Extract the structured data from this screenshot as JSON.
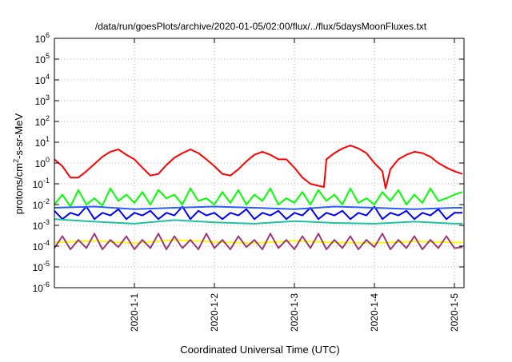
{
  "chart_data": {
    "type": "line",
    "title": "/data/run/goesPlots/archive/2020-01-05/02:00/flux/../flux/5daysMoonFluxes.txt",
    "xlabel": "Coordinated Universal Time (UTC)",
    "ylabel_parts": {
      "pre": "protons/cm",
      "sup": "2",
      "post": "-s-sr-MeV"
    },
    "yscale": "log",
    "ylim_exp": [
      -6,
      6
    ],
    "y_ticks": [
      {
        "exp": -6
      },
      {
        "exp": -5
      },
      {
        "exp": -4
      },
      {
        "exp": -3
      },
      {
        "exp": -2
      },
      {
        "exp": -1
      },
      {
        "exp": 0
      },
      {
        "exp": 1
      },
      {
        "exp": 2
      },
      {
        "exp": 3
      },
      {
        "exp": 4
      },
      {
        "exp": 5
      },
      {
        "exp": 6
      }
    ],
    "y_tick_base": "10",
    "xlim": [
      0,
      5.12
    ],
    "x_ticks": [
      {
        "label": "2020-1-1",
        "value": 1.0
      },
      {
        "label": "2020-1-2",
        "value": 2.0
      },
      {
        "label": "2020-1-3",
        "value": 3.0
      },
      {
        "label": "2020-1-4",
        "value": 4.0
      },
      {
        "label": "2020-1-5",
        "value": 5.0
      }
    ],
    "grid": true,
    "series_note": "x values are days measured from 2019-12-31 00:00 UTC",
    "series": [
      {
        "color": "#ff0000",
        "x": [
          0,
          0.1,
          0.2,
          0.3,
          0.4,
          0.5,
          0.6,
          0.7,
          0.8,
          0.9,
          1.0,
          1.1,
          1.2,
          1.3,
          1.4,
          1.5,
          1.6,
          1.7,
          1.8,
          1.9,
          2.0,
          2.1,
          2.2,
          2.3,
          2.4,
          2.5,
          2.6,
          2.7,
          2.8,
          2.9,
          3.0,
          3.1,
          3.2,
          3.3,
          3.37,
          3.4,
          3.5,
          3.6,
          3.7,
          3.8,
          3.9,
          4.0,
          4.1,
          4.14,
          4.2,
          4.3,
          4.4,
          4.5,
          4.6,
          4.7,
          4.8,
          4.9,
          5.0,
          5.1
        ],
        "y": [
          1.5,
          0.7,
          0.2,
          0.2,
          0.4,
          0.9,
          2.0,
          3.5,
          4.5,
          2.5,
          1.5,
          0.6,
          0.25,
          0.3,
          0.8,
          1.8,
          3.0,
          4.5,
          3.0,
          1.5,
          0.7,
          0.3,
          0.25,
          0.5,
          1.2,
          2.5,
          3.5,
          2.5,
          1.5,
          1.5,
          0.6,
          0.2,
          0.1,
          0.08,
          0.07,
          1.5,
          3.0,
          5.0,
          7.0,
          5.0,
          3.0,
          1.0,
          0.4,
          0.06,
          0.5,
          1.5,
          2.5,
          3.5,
          3.0,
          2.0,
          1.0,
          0.6,
          0.4,
          0.3
        ]
      },
      {
        "color": "#00ff00",
        "x": [
          0,
          0.1,
          0.2,
          0.3,
          0.4,
          0.5,
          0.6,
          0.7,
          0.8,
          0.9,
          1.0,
          1.1,
          1.2,
          1.3,
          1.4,
          1.5,
          1.6,
          1.7,
          1.8,
          1.9,
          2.0,
          2.1,
          2.2,
          2.3,
          2.4,
          2.5,
          2.6,
          2.7,
          2.8,
          2.9,
          3.0,
          3.1,
          3.2,
          3.3,
          3.4,
          3.5,
          3.6,
          3.7,
          3.8,
          3.9,
          4.0,
          4.1,
          4.2,
          4.3,
          4.4,
          4.5,
          4.6,
          4.7,
          4.8,
          4.9,
          5.0,
          5.1
        ],
        "y": [
          0.01,
          0.03,
          0.008,
          0.05,
          0.01,
          0.02,
          0.009,
          0.06,
          0.015,
          0.03,
          0.012,
          0.04,
          0.01,
          0.05,
          0.02,
          0.03,
          0.01,
          0.06,
          0.015,
          0.02,
          0.01,
          0.04,
          0.012,
          0.05,
          0.01,
          0.03,
          0.015,
          0.06,
          0.01,
          0.02,
          0.012,
          0.04,
          0.01,
          0.05,
          0.015,
          0.03,
          0.01,
          0.06,
          0.012,
          0.02,
          0.01,
          0.04,
          0.015,
          0.05,
          0.01,
          0.03,
          0.012,
          0.06,
          0.015,
          0.02,
          0.03,
          0.04
        ]
      },
      {
        "color": "#0000ff",
        "x": [
          0,
          0.1,
          0.2,
          0.3,
          0.4,
          0.5,
          0.6,
          0.7,
          0.8,
          0.9,
          1.0,
          1.1,
          1.2,
          1.3,
          1.4,
          1.5,
          1.6,
          1.7,
          1.8,
          1.9,
          2.0,
          2.1,
          2.2,
          2.3,
          2.4,
          2.5,
          2.6,
          2.7,
          2.8,
          2.9,
          3.0,
          3.1,
          3.2,
          3.3,
          3.4,
          3.5,
          3.6,
          3.7,
          3.8,
          3.9,
          4.0,
          4.1,
          4.2,
          4.3,
          4.4,
          4.5,
          4.6,
          4.7,
          4.8,
          4.9,
          5.0,
          5.1
        ],
        "y": [
          0.005,
          0.002,
          0.004,
          0.003,
          0.008,
          0.002,
          0.004,
          0.003,
          0.006,
          0.002,
          0.004,
          0.003,
          0.005,
          0.002,
          0.004,
          0.003,
          0.008,
          0.002,
          0.005,
          0.003,
          0.004,
          0.002,
          0.004,
          0.003,
          0.006,
          0.002,
          0.004,
          0.003,
          0.005,
          0.002,
          0.004,
          0.003,
          0.007,
          0.002,
          0.004,
          0.003,
          0.005,
          0.002,
          0.004,
          0.003,
          0.008,
          0.002,
          0.004,
          0.003,
          0.005,
          0.002,
          0.004,
          0.003,
          0.006,
          0.002,
          0.004,
          0.004
        ]
      },
      {
        "color": "#2a5cff",
        "x": [
          0,
          0.5,
          1.0,
          1.5,
          2.0,
          2.5,
          3.0,
          3.5,
          4.0,
          4.5,
          5.0,
          5.1
        ],
        "y": [
          0.007,
          0.008,
          0.006,
          0.007,
          0.008,
          0.007,
          0.006,
          0.008,
          0.007,
          0.006,
          0.007,
          0.007
        ]
      },
      {
        "color": "#20c0a0",
        "x": [
          0,
          0.5,
          1.0,
          1.5,
          2.0,
          2.5,
          3.0,
          3.5,
          4.0,
          4.5,
          5.0,
          5.1
        ],
        "y": [
          0.002,
          0.0015,
          0.0012,
          0.0018,
          0.0014,
          0.0012,
          0.0016,
          0.0013,
          0.0012,
          0.0015,
          0.0012,
          0.0012
        ]
      },
      {
        "color": "#ffff00",
        "x": [
          0,
          0.5,
          1.0,
          1.5,
          2.0,
          2.5,
          3.0,
          3.5,
          4.0,
          4.5,
          5.0,
          5.1
        ],
        "y": [
          0.00015,
          0.00018,
          0.00014,
          0.0002,
          0.00016,
          0.00014,
          0.00018,
          0.00015,
          0.00014,
          0.00017,
          0.00015,
          0.00015
        ]
      },
      {
        "color": "#9a3a7a",
        "x": [
          0,
          0.1,
          0.2,
          0.3,
          0.4,
          0.5,
          0.6,
          0.7,
          0.8,
          0.9,
          1.0,
          1.1,
          1.2,
          1.3,
          1.4,
          1.5,
          1.6,
          1.7,
          1.8,
          1.9,
          2.0,
          2.1,
          2.2,
          2.3,
          2.4,
          2.5,
          2.6,
          2.7,
          2.8,
          2.9,
          3.0,
          3.1,
          3.2,
          3.3,
          3.4,
          3.5,
          3.6,
          3.7,
          3.8,
          3.9,
          4.0,
          4.1,
          4.2,
          4.3,
          4.4,
          4.5,
          4.6,
          4.7,
          4.8,
          4.9,
          5.0,
          5.1
        ],
        "y": [
          8e-05,
          0.0003,
          7e-05,
          0.0002,
          8e-05,
          0.0004,
          7e-05,
          0.0002,
          9e-05,
          0.0003,
          7e-05,
          0.0002,
          8e-05,
          0.0004,
          7e-05,
          0.0003,
          8e-05,
          0.0002,
          7e-05,
          0.0004,
          8e-05,
          0.0002,
          7e-05,
          0.0003,
          9e-05,
          0.0002,
          7e-05,
          0.0004,
          8e-05,
          0.0002,
          7e-05,
          0.0003,
          8e-05,
          0.0004,
          7e-05,
          0.0002,
          8e-05,
          0.0003,
          7e-05,
          0.0002,
          9e-05,
          0.0004,
          7e-05,
          0.0002,
          8e-05,
          0.0003,
          7e-05,
          0.0002,
          8e-05,
          0.0003,
          8e-05,
          9e-05
        ]
      }
    ]
  }
}
